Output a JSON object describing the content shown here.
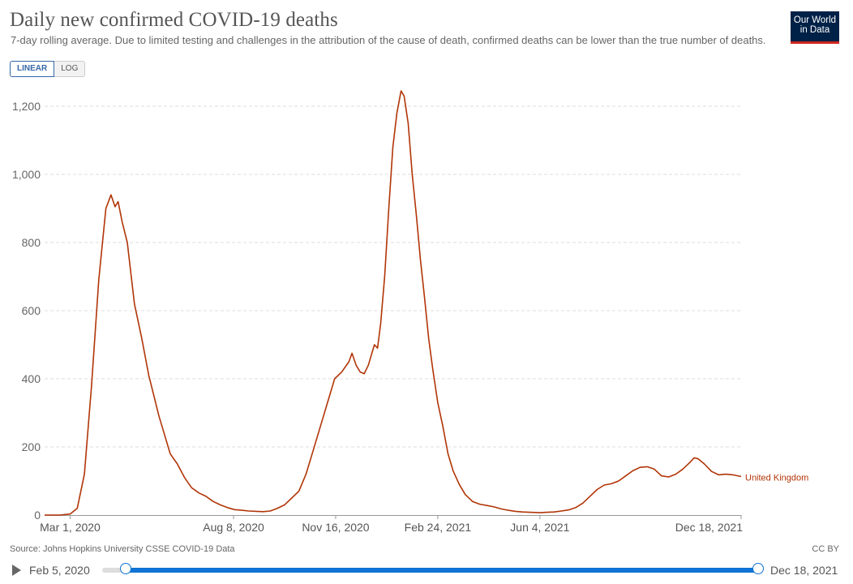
{
  "header": {
    "title": "Daily new confirmed COVID-19 deaths",
    "subtitle": "7-day rolling average. Due to limited testing and challenges in the attribution of the cause of death, confirmed deaths can be lower than the true number of deaths.",
    "logo_line1": "Our World",
    "logo_line2": "in Data"
  },
  "scale_toggle": {
    "linear_label": "LINEAR",
    "log_label": "LOG",
    "selected": "LINEAR"
  },
  "footer": {
    "source": "Source: Johns Hopkins University CSSE COVID-19 Data",
    "license": "CC BY"
  },
  "timeline": {
    "start_label": "Feb 5, 2020",
    "end_label": "Dec 18, 2021"
  },
  "colors": {
    "series": "#b13507",
    "accent": "#0f74d4",
    "logo_bg": "#002147",
    "logo_stripe": "#ce261e"
  },
  "chart_data": {
    "type": "line",
    "title": "Daily new confirmed COVID-19 deaths",
    "ylim": [
      0,
      1250
    ],
    "yticks": [
      0,
      200,
      400,
      600,
      800,
      1000,
      1200
    ],
    "ytick_labels": [
      "0",
      "200",
      "400",
      "600",
      "800",
      "1,000",
      "1,200"
    ],
    "xlim": [
      "2020-02-05",
      "2021-12-18"
    ],
    "xticks": [
      "2020-03-01",
      "2020-08-08",
      "2020-11-16",
      "2021-02-24",
      "2021-06-04",
      "2021-12-18"
    ],
    "xtick_labels": [
      "Mar 1, 2020",
      "Aug 8, 2020",
      "Nov 16, 2020",
      "Feb 24, 2021",
      "Jun 4, 2021",
      "Dec 18, 2021"
    ],
    "grid": "horizontal dashed",
    "series": [
      {
        "name": "United Kingdom",
        "points": [
          [
            "2020-02-05",
            0
          ],
          [
            "2020-02-20",
            0
          ],
          [
            "2020-03-01",
            3
          ],
          [
            "2020-03-08",
            20
          ],
          [
            "2020-03-15",
            120
          ],
          [
            "2020-03-22",
            380
          ],
          [
            "2020-03-29",
            690
          ],
          [
            "2020-04-05",
            900
          ],
          [
            "2020-04-10",
            940
          ],
          [
            "2020-04-14",
            905
          ],
          [
            "2020-04-17",
            920
          ],
          [
            "2020-04-21",
            860
          ],
          [
            "2020-04-26",
            800
          ],
          [
            "2020-05-03",
            620
          ],
          [
            "2020-05-10",
            520
          ],
          [
            "2020-05-17",
            410
          ],
          [
            "2020-05-22",
            350
          ],
          [
            "2020-05-27",
            290
          ],
          [
            "2020-06-01",
            240
          ],
          [
            "2020-06-07",
            180
          ],
          [
            "2020-06-14",
            150
          ],
          [
            "2020-06-21",
            110
          ],
          [
            "2020-06-28",
            80
          ],
          [
            "2020-07-05",
            65
          ],
          [
            "2020-07-12",
            55
          ],
          [
            "2020-07-19",
            40
          ],
          [
            "2020-07-26",
            30
          ],
          [
            "2020-08-02",
            22
          ],
          [
            "2020-08-09",
            16
          ],
          [
            "2020-08-16",
            14
          ],
          [
            "2020-08-23",
            12
          ],
          [
            "2020-08-30",
            11
          ],
          [
            "2020-09-06",
            10
          ],
          [
            "2020-09-13",
            12
          ],
          [
            "2020-09-20",
            20
          ],
          [
            "2020-09-27",
            30
          ],
          [
            "2020-10-04",
            50
          ],
          [
            "2020-10-11",
            70
          ],
          [
            "2020-10-18",
            120
          ],
          [
            "2020-10-25",
            190
          ],
          [
            "2020-11-01",
            260
          ],
          [
            "2020-11-08",
            330
          ],
          [
            "2020-11-15",
            400
          ],
          [
            "2020-11-22",
            420
          ],
          [
            "2020-11-29",
            450
          ],
          [
            "2020-12-02",
            475
          ],
          [
            "2020-12-06",
            440
          ],
          [
            "2020-12-10",
            420
          ],
          [
            "2020-12-14",
            415
          ],
          [
            "2020-12-18",
            440
          ],
          [
            "2020-12-21",
            470
          ],
          [
            "2020-12-24",
            500
          ],
          [
            "2020-12-27",
            490
          ],
          [
            "2020-12-30",
            560
          ],
          [
            "2021-01-03",
            700
          ],
          [
            "2021-01-07",
            900
          ],
          [
            "2021-01-11",
            1080
          ],
          [
            "2021-01-15",
            1180
          ],
          [
            "2021-01-19",
            1245
          ],
          [
            "2021-01-22",
            1230
          ],
          [
            "2021-01-26",
            1150
          ],
          [
            "2021-01-30",
            1000
          ],
          [
            "2021-02-03",
            880
          ],
          [
            "2021-02-07",
            750
          ],
          [
            "2021-02-11",
            640
          ],
          [
            "2021-02-15",
            520
          ],
          [
            "2021-02-19",
            430
          ],
          [
            "2021-02-24",
            330
          ],
          [
            "2021-03-01",
            260
          ],
          [
            "2021-03-06",
            180
          ],
          [
            "2021-03-11",
            130
          ],
          [
            "2021-03-17",
            90
          ],
          [
            "2021-03-23",
            60
          ],
          [
            "2021-03-30",
            40
          ],
          [
            "2021-04-06",
            32
          ],
          [
            "2021-04-13",
            28
          ],
          [
            "2021-04-20",
            24
          ],
          [
            "2021-04-27",
            18
          ],
          [
            "2021-05-04",
            14
          ],
          [
            "2021-05-11",
            11
          ],
          [
            "2021-05-18",
            9
          ],
          [
            "2021-05-25",
            8
          ],
          [
            "2021-06-04",
            7
          ],
          [
            "2021-06-11",
            8
          ],
          [
            "2021-06-18",
            9
          ],
          [
            "2021-06-25",
            12
          ],
          [
            "2021-07-02",
            15
          ],
          [
            "2021-07-09",
            22
          ],
          [
            "2021-07-16",
            35
          ],
          [
            "2021-07-23",
            55
          ],
          [
            "2021-07-30",
            75
          ],
          [
            "2021-08-06",
            88
          ],
          [
            "2021-08-13",
            92
          ],
          [
            "2021-08-20",
            100
          ],
          [
            "2021-08-27",
            115
          ],
          [
            "2021-09-03",
            130
          ],
          [
            "2021-09-10",
            140
          ],
          [
            "2021-09-17",
            142
          ],
          [
            "2021-09-24",
            135
          ],
          [
            "2021-10-01",
            115
          ],
          [
            "2021-10-08",
            112
          ],
          [
            "2021-10-15",
            120
          ],
          [
            "2021-10-22",
            135
          ],
          [
            "2021-10-29",
            155
          ],
          [
            "2021-11-02",
            168
          ],
          [
            "2021-11-06",
            165
          ],
          [
            "2021-11-12",
            150
          ],
          [
            "2021-11-19",
            128
          ],
          [
            "2021-11-26",
            118
          ],
          [
            "2021-12-03",
            120
          ],
          [
            "2021-12-10",
            118
          ],
          [
            "2021-12-18",
            113
          ]
        ]
      }
    ],
    "end_label": "United Kingdom"
  }
}
